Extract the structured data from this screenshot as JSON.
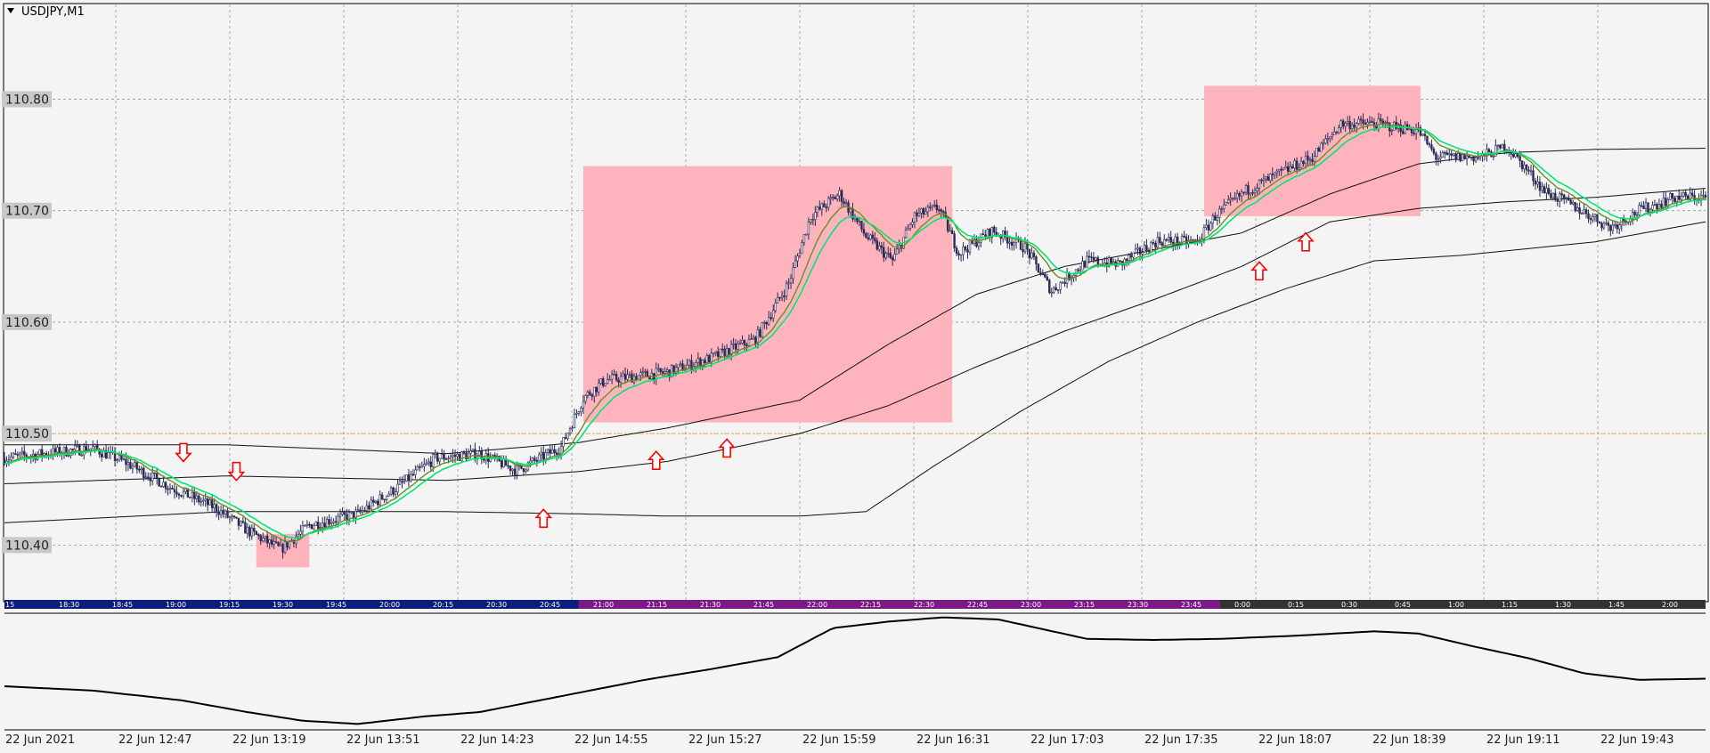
{
  "window": {
    "title": "USDJPY,M1",
    "background": "#f4f4f4",
    "grid_color": "#9a9a9a"
  },
  "chart_data": {
    "type": "candlestick",
    "symbol": "USDJPY",
    "timeframe": "M1",
    "grid": true,
    "colors": {
      "candles": "#2b2b55",
      "fast_ma": "#00e676",
      "slow_ma": "#6b8e23",
      "bands": "#111111",
      "zones": "#ffb3bd",
      "arrows": "#ff0000",
      "reference_line": "#ff9900"
    },
    "y_axis": {
      "range": [
        110.35,
        110.885
      ],
      "ticks": [
        "110.80",
        "110.70",
        "110.60",
        "110.50",
        "110.40"
      ],
      "reference_level": "110.50"
    },
    "x_axis": {
      "labels": [
        "22 Jun 2021",
        "22 Jun 12:47",
        "22 Jun 13:19",
        "22 Jun 13:51",
        "22 Jun 14:23",
        "22 Jun 14:55",
        "22 Jun 15:27",
        "22 Jun 15:59",
        "22 Jun 16:31",
        "22 Jun 17:03",
        "22 Jun 17:35",
        "22 Jun 18:07",
        "22 Jun 18:39",
        "22 Jun 19:11",
        "22 Jun 19:43"
      ],
      "bar_range": [
        0,
        770
      ]
    },
    "session_strip": {
      "labels": [
        "15",
        "18:30",
        "18:45",
        "19:00",
        "19:15",
        "19:30",
        "19:45",
        "20:00",
        "20:15",
        "20:30",
        "20:45",
        "21:00",
        "21:15",
        "21:30",
        "21:45",
        "22:00",
        "22:15",
        "22:30",
        "22:45",
        "23:00",
        "23:15",
        "23:30",
        "23:45",
        "0:00",
        "0:15",
        "0:30",
        "0:45",
        "1:00",
        "1:15",
        "1:30",
        "1:45",
        "2:00"
      ],
      "segments": [
        {
          "from": 0,
          "to": 260,
          "color": "#0b1f7a"
        },
        {
          "from": 260,
          "to": 550,
          "color": "#7a1a86"
        },
        {
          "from": 550,
          "to": 770,
          "color": "#333333"
        }
      ]
    },
    "price_path": [
      [
        0,
        110.478
      ],
      [
        40,
        110.487
      ],
      [
        55,
        110.474
      ],
      [
        75,
        110.452
      ],
      [
        95,
        110.434
      ],
      [
        110,
        110.413
      ],
      [
        125,
        110.396
      ],
      [
        138,
        110.418
      ],
      [
        160,
        110.428
      ],
      [
        178,
        110.452
      ],
      [
        195,
        110.478
      ],
      [
        215,
        110.482
      ],
      [
        232,
        110.467
      ],
      [
        252,
        110.488
      ],
      [
        262,
        110.532
      ],
      [
        272,
        110.548
      ],
      [
        300,
        110.555
      ],
      [
        320,
        110.568
      ],
      [
        340,
        110.585
      ],
      [
        355,
        110.635
      ],
      [
        365,
        110.695
      ],
      [
        378,
        110.715
      ],
      [
        390,
        110.677
      ],
      [
        402,
        110.655
      ],
      [
        412,
        110.695
      ],
      [
        423,
        110.703
      ],
      [
        432,
        110.662
      ],
      [
        447,
        110.682
      ],
      [
        462,
        110.667
      ],
      [
        474,
        110.628
      ],
      [
        490,
        110.655
      ],
      [
        505,
        110.652
      ],
      [
        522,
        110.673
      ],
      [
        540,
        110.672
      ],
      [
        548,
        110.695
      ],
      [
        562,
        110.718
      ],
      [
        577,
        110.733
      ],
      [
        592,
        110.748
      ],
      [
        605,
        110.778
      ],
      [
        620,
        110.778
      ],
      [
        640,
        110.772
      ],
      [
        648,
        110.748
      ],
      [
        668,
        110.748
      ],
      [
        680,
        110.758
      ],
      [
        697,
        110.718
      ],
      [
        712,
        110.702
      ],
      [
        727,
        110.685
      ],
      [
        740,
        110.7
      ],
      [
        756,
        110.712
      ],
      [
        770,
        110.712
      ]
    ],
    "band_upper": [
      [
        0,
        110.49
      ],
      [
        100,
        110.49
      ],
      [
        200,
        110.482
      ],
      [
        260,
        110.492
      ],
      [
        300,
        110.505
      ],
      [
        360,
        110.53
      ],
      [
        400,
        110.58
      ],
      [
        440,
        110.625
      ],
      [
        480,
        110.65
      ],
      [
        520,
        110.665
      ],
      [
        560,
        110.68
      ],
      [
        600,
        110.715
      ],
      [
        640,
        110.742
      ],
      [
        680,
        110.752
      ],
      [
        720,
        110.755
      ],
      [
        770,
        110.756
      ]
    ],
    "band_middle": [
      [
        0,
        110.455
      ],
      [
        100,
        110.462
      ],
      [
        200,
        110.458
      ],
      [
        260,
        110.466
      ],
      [
        300,
        110.475
      ],
      [
        360,
        110.5
      ],
      [
        400,
        110.525
      ],
      [
        440,
        110.56
      ],
      [
        480,
        110.592
      ],
      [
        520,
        110.62
      ],
      [
        560,
        110.65
      ],
      [
        600,
        110.69
      ],
      [
        640,
        110.702
      ],
      [
        680,
        110.708
      ],
      [
        720,
        110.712
      ],
      [
        770,
        110.72
      ]
    ],
    "band_lower": [
      [
        0,
        110.42
      ],
      [
        100,
        110.43
      ],
      [
        200,
        110.43
      ],
      [
        260,
        110.428
      ],
      [
        300,
        110.426
      ],
      [
        360,
        110.426
      ],
      [
        390,
        110.43
      ],
      [
        420,
        110.47
      ],
      [
        460,
        110.52
      ],
      [
        500,
        110.565
      ],
      [
        540,
        110.6
      ],
      [
        580,
        110.63
      ],
      [
        620,
        110.655
      ],
      [
        660,
        110.66
      ],
      [
        720,
        110.672
      ],
      [
        770,
        110.69
      ]
    ],
    "zones": [
      {
        "x": [
          114,
          138
        ],
        "y": [
          110.38,
          110.41
        ]
      },
      {
        "x": [
          262,
          429
        ],
        "y": [
          110.51,
          110.74
        ]
      },
      {
        "x": [
          543,
          641
        ],
        "y": [
          110.695,
          110.812
        ]
      }
    ],
    "arrows": [
      {
        "bar": 81,
        "price": 110.483,
        "direction": "down"
      },
      {
        "bar": 105,
        "price": 110.466,
        "direction": "down"
      },
      {
        "bar": 244,
        "price": 110.424,
        "direction": "up"
      },
      {
        "bar": 295,
        "price": 110.476,
        "direction": "up"
      },
      {
        "bar": 327,
        "price": 110.487,
        "direction": "up"
      },
      {
        "bar": 568,
        "price": 110.646,
        "direction": "up"
      },
      {
        "bar": 589,
        "price": 110.672,
        "direction": "up"
      }
    ],
    "oscillator": {
      "range": [
        0,
        1
      ],
      "points": [
        [
          0,
          0.62
        ],
        [
          40,
          0.66
        ],
        [
          80,
          0.75
        ],
        [
          110,
          0.86
        ],
        [
          135,
          0.94
        ],
        [
          160,
          0.97
        ],
        [
          190,
          0.9
        ],
        [
          215,
          0.86
        ],
        [
          240,
          0.76
        ],
        [
          265,
          0.66
        ],
        [
          290,
          0.56
        ],
        [
          320,
          0.46
        ],
        [
          350,
          0.35
        ],
        [
          375,
          0.08
        ],
        [
          400,
          0.02
        ],
        [
          425,
          -0.02
        ],
        [
          450,
          0.0
        ],
        [
          470,
          0.09
        ],
        [
          490,
          0.18
        ],
        [
          520,
          0.19
        ],
        [
          550,
          0.18
        ],
        [
          585,
          0.15
        ],
        [
          620,
          0.11
        ],
        [
          640,
          0.13
        ],
        [
          665,
          0.25
        ],
        [
          690,
          0.36
        ],
        [
          715,
          0.5
        ],
        [
          740,
          0.56
        ],
        [
          770,
          0.55
        ]
      ]
    }
  }
}
